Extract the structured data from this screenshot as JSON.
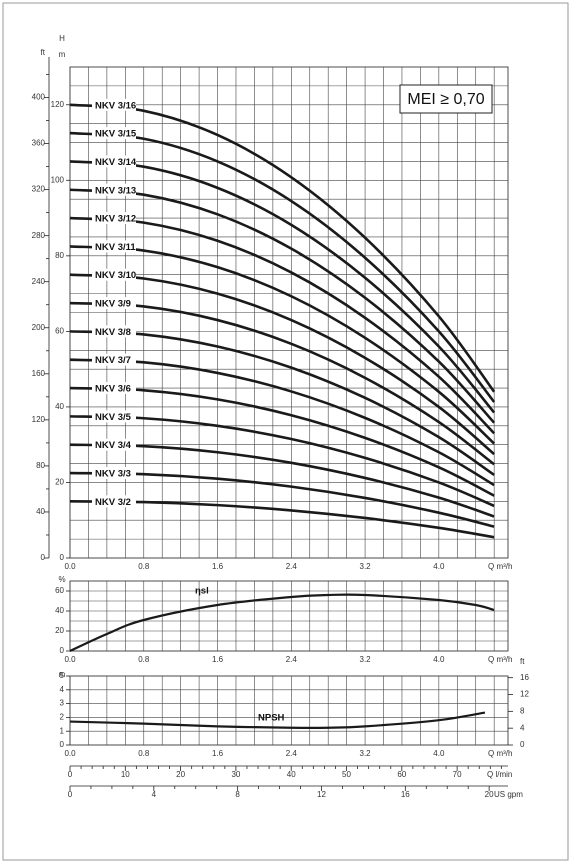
{
  "chart_data": [
    {
      "type": "line",
      "x_label": "Q m³/h",
      "y_label": "H",
      "y_unit": "m",
      "y2_label": "ft",
      "annotation": "MEI ≥ 0,70",
      "grid": true,
      "color": "#1a1a1a",
      "x": [
        0,
        0.8,
        1.6,
        2.4,
        3.2,
        4.0,
        4.6
      ],
      "xlim": [
        0,
        4.75
      ],
      "xticks": [
        {
          "value": 0,
          "label": "0.0"
        },
        0.8,
        1.6,
        2.4,
        3.2,
        {
          "value": 4,
          "label": "4.0"
        }
      ],
      "ylim": [
        0,
        130
      ],
      "yticks": [
        0,
        20,
        40,
        60,
        80,
        100,
        120
      ],
      "y2lim": [
        0,
        426.5
      ],
      "y2ticks": [
        0,
        40,
        80,
        120,
        160,
        200,
        240,
        280,
        320,
        360,
        400
      ],
      "series": [
        {
          "name": "NKV 3/16",
          "values": [
            120,
            118.4,
            112,
            100.8,
            84.8,
            64,
            44
          ]
        },
        {
          "name": "NKV 3/15",
          "values": [
            112.5,
            111,
            105,
            94.5,
            79.5,
            60,
            41.3
          ]
        },
        {
          "name": "NKV 3/14",
          "values": [
            105,
            103.6,
            98,
            88.2,
            74.2,
            56,
            38.5
          ]
        },
        {
          "name": "NKV 3/13",
          "values": [
            97.5,
            96.2,
            91,
            81.9,
            68.9,
            52,
            35.8
          ]
        },
        {
          "name": "NKV 3/12",
          "values": [
            90,
            88.8,
            84,
            75.6,
            63.6,
            48,
            33
          ]
        },
        {
          "name": "NKV 3/11",
          "values": [
            82.5,
            81.4,
            77,
            69.3,
            58.3,
            44,
            30.3
          ]
        },
        {
          "name": "NKV 3/10",
          "values": [
            75,
            74,
            70,
            63,
            53,
            40,
            27.5
          ]
        },
        {
          "name": "NKV 3/9",
          "values": [
            67.5,
            66.6,
            63,
            56.7,
            47.7,
            36,
            24.8
          ]
        },
        {
          "name": "NKV 3/8",
          "values": [
            60,
            59.2,
            56,
            50.4,
            42.4,
            32,
            22
          ]
        },
        {
          "name": "NKV 3/7",
          "values": [
            52.5,
            51.8,
            49,
            44.1,
            37.1,
            28,
            19.3
          ]
        },
        {
          "name": "NKV 3/6",
          "values": [
            45,
            44.4,
            42,
            37.8,
            31.8,
            24,
            16.5
          ]
        },
        {
          "name": "NKV 3/5",
          "values": [
            37.5,
            37,
            35,
            31.5,
            26.5,
            20,
            13.8
          ]
        },
        {
          "name": "NKV 3/4",
          "values": [
            30,
            29.6,
            28,
            25.2,
            21.2,
            16,
            11
          ]
        },
        {
          "name": "NKV 3/3",
          "values": [
            22.5,
            22.2,
            21,
            18.9,
            15.9,
            12,
            8.3
          ]
        },
        {
          "name": "NKV 3/2",
          "values": [
            15,
            14.8,
            14,
            12.6,
            10.6,
            8,
            5.5
          ]
        }
      ]
    },
    {
      "type": "line",
      "x_label": "Q m³/h",
      "y_label": "%",
      "grid": true,
      "color": "#1a1a1a",
      "x": [
        0,
        0.4,
        0.8,
        1.6,
        2.4,
        2.8,
        3.2,
        4.0,
        4.4,
        4.6
      ],
      "xlim": [
        0,
        4.75
      ],
      "xticks": [
        {
          "value": 0,
          "label": "0.0"
        },
        0.8,
        1.6,
        2.4,
        3.2,
        {
          "value": 4,
          "label": "4.0"
        }
      ],
      "ylim": [
        0,
        70
      ],
      "yticks": [
        0,
        20,
        40,
        60
      ],
      "series": [
        {
          "name": "ηsl",
          "values": [
            0,
            17,
            31,
            46,
            54,
            56,
            56,
            51,
            46,
            41
          ]
        }
      ]
    },
    {
      "type": "line",
      "x_label": "Q m³/h",
      "y_label": "m",
      "y2_label": "ft",
      "grid": true,
      "color": "#1a1a1a",
      "x": [
        0,
        0.8,
        1.6,
        2.4,
        2.8,
        3.2,
        4.0,
        4.5
      ],
      "xlim": [
        0,
        4.75
      ],
      "xticks": [
        {
          "value": 0,
          "label": "0.0"
        },
        0.8,
        1.6,
        2.4,
        3.2,
        {
          "value": 4,
          "label": "4.0"
        }
      ],
      "ylim": [
        0,
        5
      ],
      "yticks": [
        0,
        1,
        2,
        3,
        4,
        5
      ],
      "y2lim": [
        0,
        16.4
      ],
      "y2ticks": [
        0,
        4,
        8,
        12,
        16
      ],
      "series": [
        {
          "name": "NPSH",
          "values": [
            1.7,
            1.55,
            1.35,
            1.25,
            1.25,
            1.35,
            1.8,
            2.35
          ]
        }
      ],
      "x2_label": "Q l/min",
      "x2lim": [
        0,
        79.2
      ],
      "x2ticks": [
        0,
        10,
        20,
        30,
        40,
        50,
        60,
        70
      ],
      "x3_label": "US gpm",
      "x3lim": [
        0,
        20.9
      ],
      "x3ticks": [
        0,
        4,
        8,
        12,
        16,
        20
      ]
    }
  ]
}
